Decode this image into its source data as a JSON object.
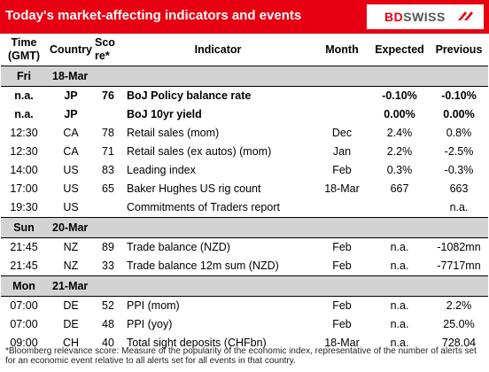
{
  "header": {
    "title": "Today's market-affecting indicators and events",
    "logo": {
      "bd": "BD",
      "swiss": "SWISS",
      "icon": "double-chevron-mark-icon"
    }
  },
  "columns": {
    "time": "Time (GMT)",
    "country": "Country",
    "score": "Sco re*",
    "indicator": "Indicator",
    "month": "Month",
    "expected": "Expected",
    "previous": "Previous"
  },
  "days": [
    {
      "day": "Fri",
      "date": "18-Mar",
      "rows": [
        {
          "time": "n.a.",
          "country": "JP",
          "score": "76",
          "indicator": "BoJ  Policy balance rate",
          "month": "",
          "expected": "-0.10%",
          "previous": "-0.10%",
          "bold": true
        },
        {
          "time": "n.a.",
          "country": "JP",
          "score": "",
          "indicator": "BoJ 10yr yield",
          "month": "",
          "expected": "0.00%",
          "previous": "0.00%",
          "bold": true
        },
        {
          "time": "12:30",
          "country": "CA",
          "score": "78",
          "indicator": "Retail sales (mom)",
          "month": "Dec",
          "expected": "2.4%",
          "previous": "0.8%",
          "bold": false
        },
        {
          "time": "12:30",
          "country": "CA",
          "score": "71",
          "indicator": "Retail sales (ex autos) (mom)",
          "month": "Jan",
          "expected": "2.2%",
          "previous": "-2.5%",
          "bold": false
        },
        {
          "time": "14:00",
          "country": "US",
          "score": "83",
          "indicator": "Leading index",
          "month": "Feb",
          "expected": "0.3%",
          "previous": "-0.3%",
          "bold": false
        },
        {
          "time": "17:00",
          "country": "US",
          "score": "65",
          "indicator": "Baker Hughes US rig count",
          "month": "18-Mar",
          "expected": "667",
          "previous": "663",
          "bold": false
        },
        {
          "time": "19:30",
          "country": "US",
          "score": "",
          "indicator": "Commitments of Traders  report",
          "month": "",
          "expected": "",
          "previous": "n.a.",
          "bold": false
        }
      ]
    },
    {
      "day": "Sun",
      "date": "20-Mar",
      "rows": [
        {
          "time": "21:45",
          "country": "NZ",
          "score": "89",
          "indicator": "Trade balance (NZD)",
          "month": "Feb",
          "expected": "n.a.",
          "previous": "-1082mn",
          "bold": false
        },
        {
          "time": "21:45",
          "country": "NZ",
          "score": "33",
          "indicator": "Trade balance 12m sum (NZD)",
          "month": "Feb",
          "expected": "n.a.",
          "previous": "-7717mn",
          "bold": false
        }
      ]
    },
    {
      "day": "Mon",
      "date": "21-Mar",
      "rows": [
        {
          "time": "07:00",
          "country": "DE",
          "score": "52",
          "indicator": "PPI (mom)",
          "month": "Feb",
          "expected": "n.a.",
          "previous": "2.2%",
          "bold": false
        },
        {
          "time": "07:00",
          "country": "DE",
          "score": "48",
          "indicator": "PPI (yoy)",
          "month": "Feb",
          "expected": "n.a.",
          "previous": "25.0%",
          "bold": false
        },
        {
          "time": "09:00",
          "country": "CH",
          "score": "40",
          "indicator": "Total sight deposits (CHFbn)",
          "month": "18-Mar",
          "expected": "n.a.",
          "previous": "728.04",
          "bold": false
        }
      ]
    }
  ],
  "footnote": "*Bloomberg relevance score: Measure of the popularity of the economic index, representative of the number of alerts set for an economic event relative to all alerts set for all events in that country."
}
